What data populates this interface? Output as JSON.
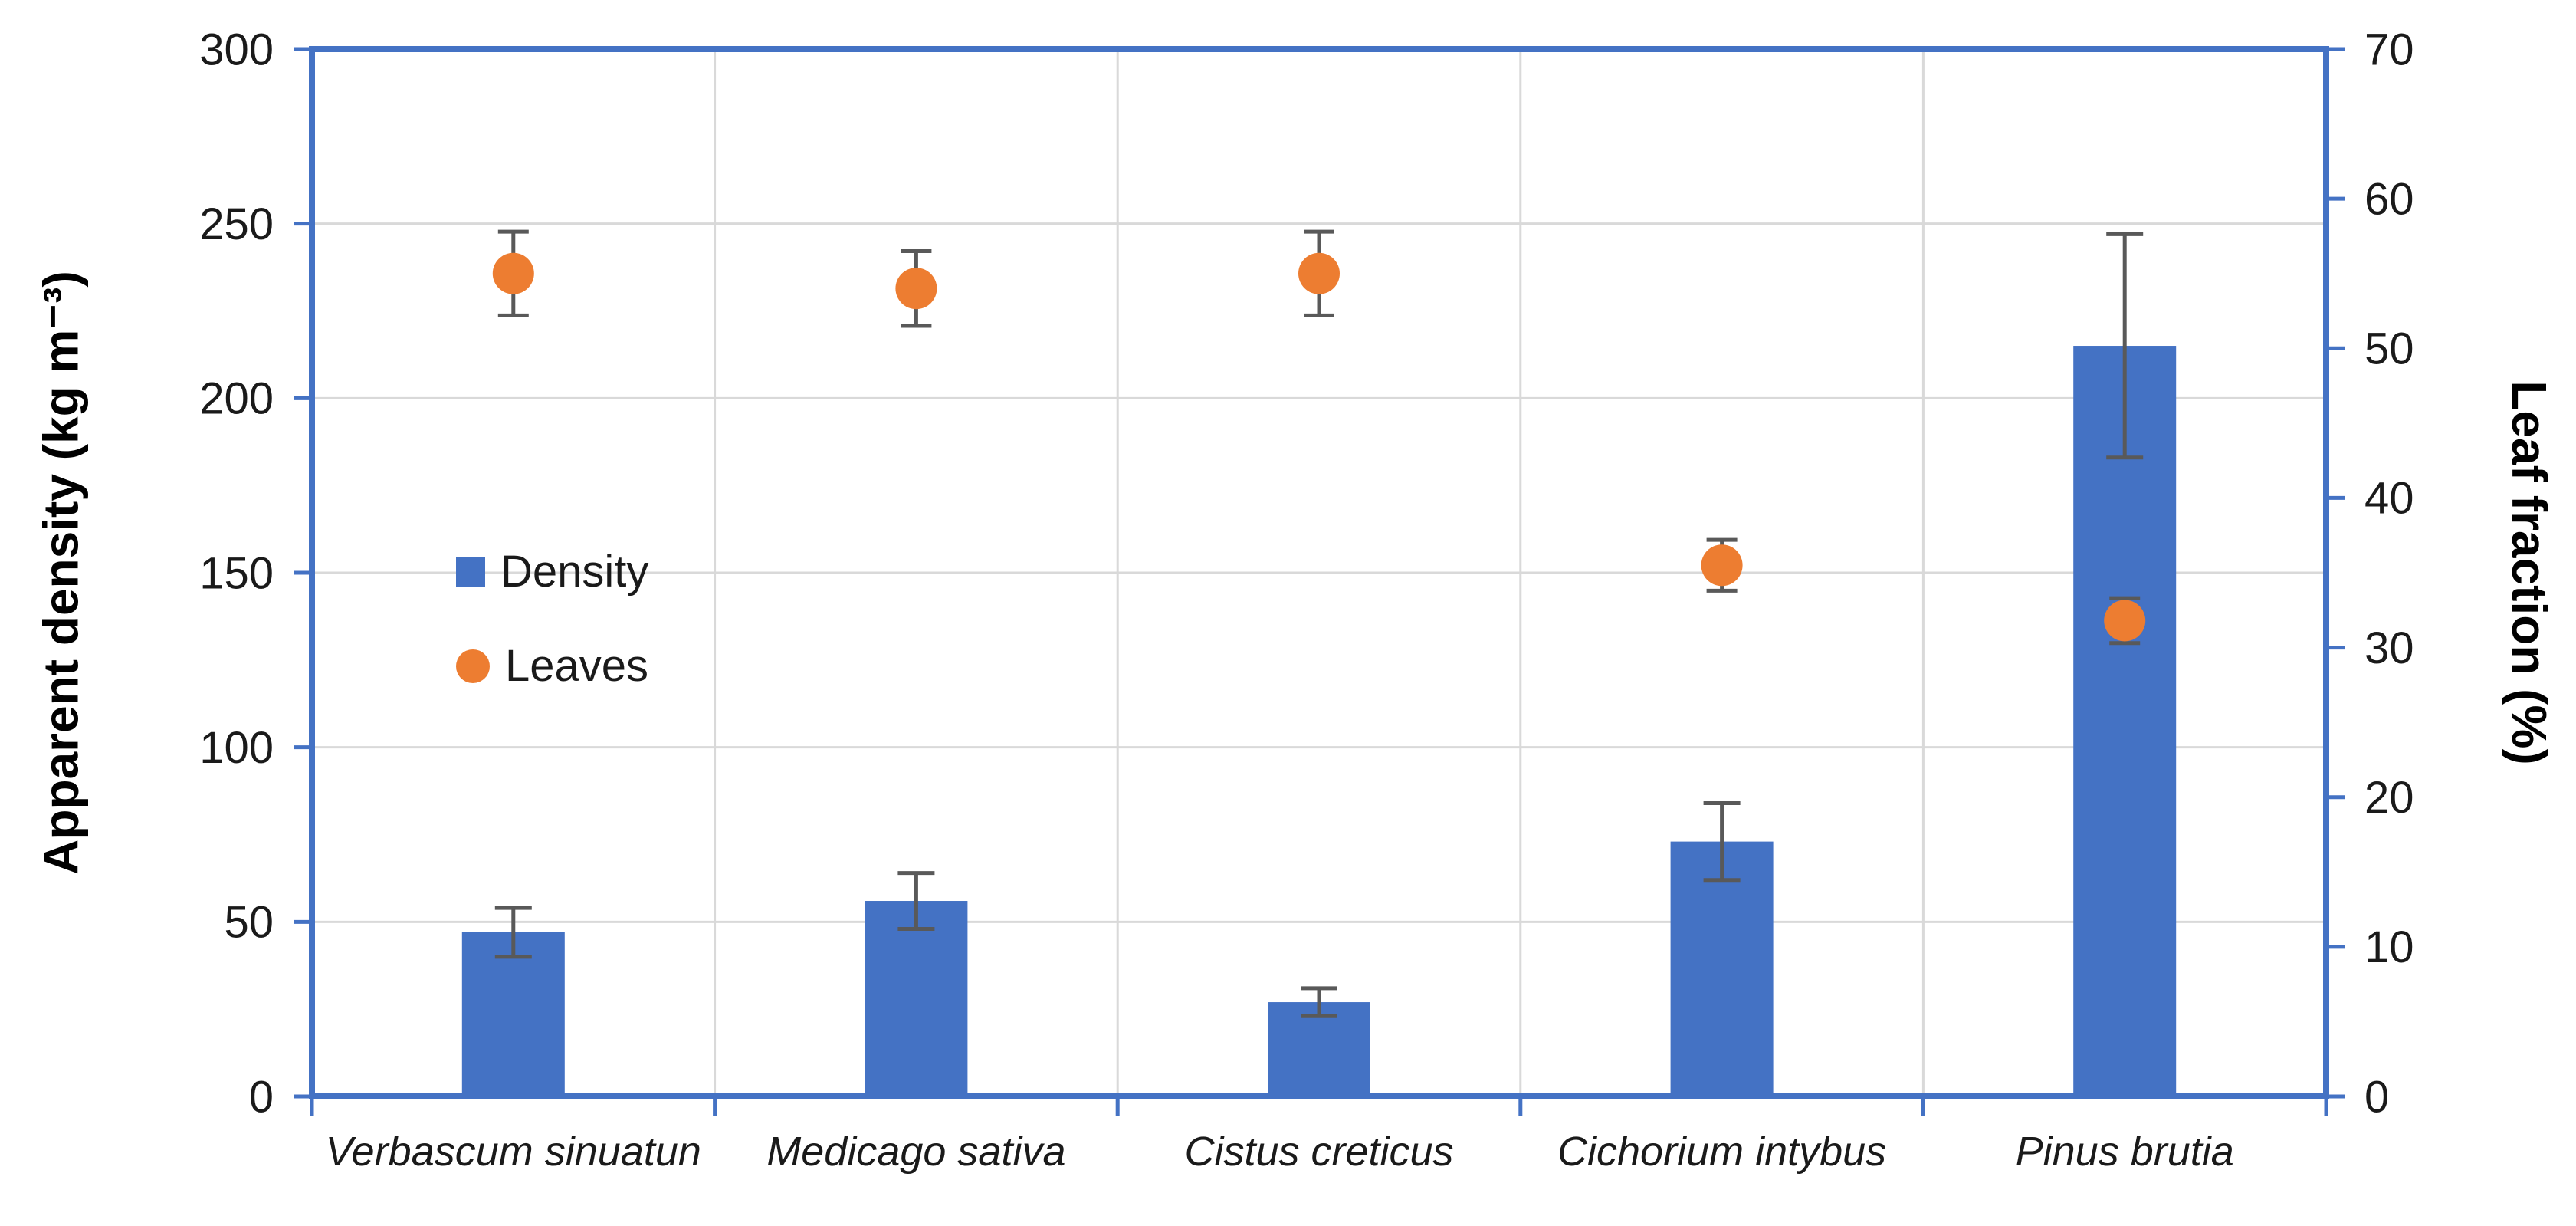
{
  "chart_data": {
    "type": "bar+scatter",
    "title": "",
    "categories": [
      "Verbascum sinuatun",
      "Medicago sativa",
      "Cistus creticus",
      "Cichorium intybus",
      "Pinus brutia"
    ],
    "left_axis": {
      "title": "Apparent density (kg m⁻³)",
      "min": 0,
      "max": 300,
      "step": 50
    },
    "right_axis": {
      "title": "Leaf fraction (%)",
      "min": 0,
      "max": 70,
      "step": 10
    },
    "series": [
      {
        "name": "Density",
        "type": "bar",
        "axis": "left",
        "color": "#4472C4",
        "values": [
          47,
          56,
          27,
          73,
          215
        ],
        "errors": [
          7,
          8,
          4,
          11,
          32
        ]
      },
      {
        "name": "Leaves",
        "type": "scatter",
        "axis": "right",
        "color": "#ED7D31",
        "values": [
          55,
          54,
          55,
          35.5,
          31.8
        ],
        "errors": [
          2.8,
          2.5,
          2.8,
          1.7,
          1.5
        ]
      }
    ],
    "legend_position": "inside-left",
    "grid": true,
    "colors": {
      "frame": "#4472C4",
      "grid": "#D9D9D9",
      "error": "#595959",
      "text": "#1a1a1a"
    }
  }
}
